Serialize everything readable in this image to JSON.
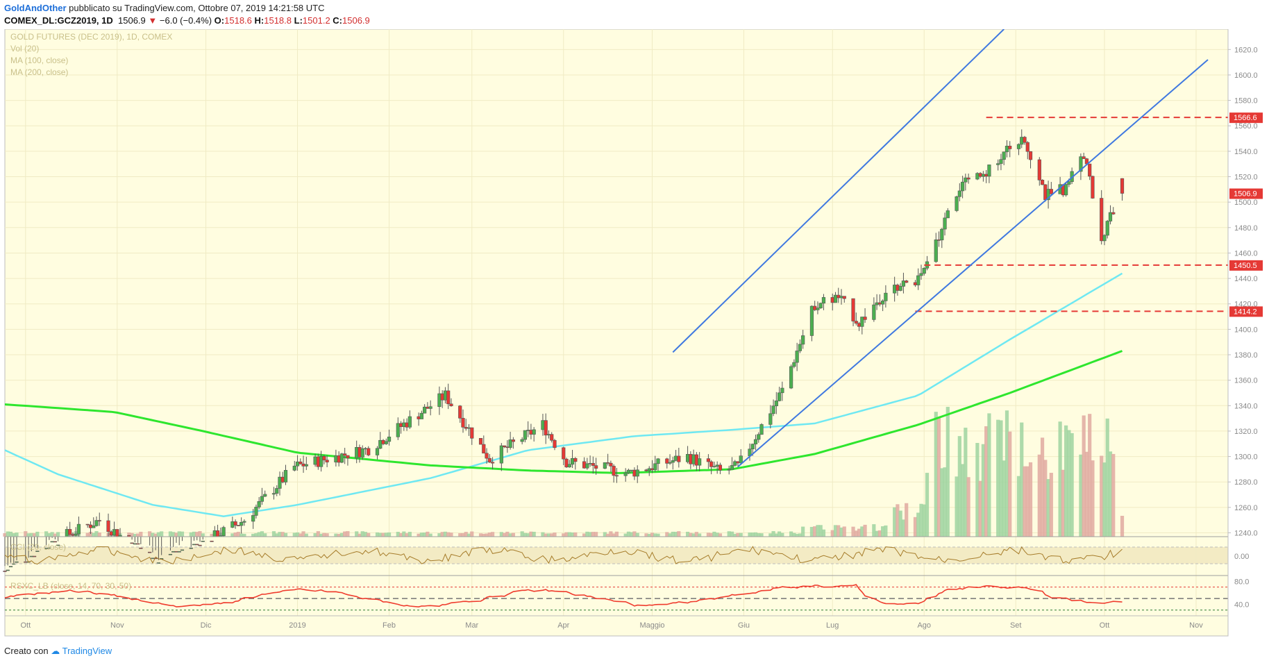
{
  "header": {
    "author": "GoldAndOther",
    "published": "pubblicato su TradingView.com, Ottobre 07, 2019 14:21:58 UTC",
    "symbol": "COMEX_DL:GCZ2019, 1D",
    "last": "1506.9",
    "change": "−6.0 (−0.4%)",
    "o_label": "O:",
    "o_val": "1518.6",
    "h_label": "H:",
    "h_val": "1518.8",
    "l_label": "L:",
    "l_val": "1501.2",
    "c_label": "C:",
    "c_val": "1506.9"
  },
  "legend": {
    "title": "GOLD FUTURES (DEC 2019), 1D, COMEX",
    "vol": "Vol (20)",
    "ma100": "MA (100, close)",
    "ma200": "MA (200, close)",
    "cci": "CCI (20, close)",
    "rsi": "RSXC_LB (close, 14, 70, 30, 50)"
  },
  "footer": {
    "made_with": "Creato con",
    "brand": "TradingView"
  },
  "colors": {
    "background": "#fffde0",
    "up": "#4caf50",
    "down": "#e53935",
    "channel": "#3f78e0",
    "ma100": "#6fe8f2",
    "ma200": "#2ee62e",
    "level": "#e53935",
    "cci": "#a67c2a",
    "rsi": "#ef3b2d"
  },
  "chart_data": {
    "type": "candlestick",
    "title": "GOLD FUTURES (DEC 2019), 1D, COMEX",
    "x_labels": [
      "Ott",
      "Nov",
      "Dic",
      "2019",
      "Feb",
      "Mar",
      "Apr",
      "Maggio",
      "Giu",
      "Lug",
      "Ago",
      "Set",
      "Ott",
      "Nov"
    ],
    "y_ticks": [
      1240,
      1260,
      1280,
      1300,
      1320,
      1340,
      1360,
      1380,
      1400,
      1420,
      1440,
      1460,
      1480,
      1500,
      1520,
      1540,
      1560,
      1580,
      1600,
      1620
    ],
    "ylim": [
      1237,
      1636
    ],
    "price_anchors": [
      [
        "2018-09-24",
        1210
      ],
      [
        "2018-10-12",
        1235
      ],
      [
        "2018-10-26",
        1250
      ],
      [
        "2018-11-13",
        1218
      ],
      [
        "2018-11-30",
        1232
      ],
      [
        "2018-12-14",
        1250
      ],
      [
        "2018-12-31",
        1292
      ],
      [
        "2019-01-25",
        1306
      ],
      [
        "2019-02-20",
        1348
      ],
      [
        "2019-03-07",
        1298
      ],
      [
        "2019-03-25",
        1325
      ],
      [
        "2019-04-02",
        1296
      ],
      [
        "2019-04-23",
        1287
      ],
      [
        "2019-05-13",
        1300
      ],
      [
        "2019-05-24",
        1288
      ],
      [
        "2019-05-30",
        1292
      ],
      [
        "2019-06-14",
        1352
      ],
      [
        "2019-06-25",
        1420
      ],
      [
        "2019-07-03",
        1425
      ],
      [
        "2019-07-10",
        1405
      ],
      [
        "2019-07-19",
        1430
      ],
      [
        "2019-07-31",
        1440
      ],
      [
        "2019-08-13",
        1512
      ],
      [
        "2019-08-20",
        1520
      ],
      [
        "2019-09-03",
        1550
      ],
      [
        "2019-09-06",
        1538
      ],
      [
        "2019-09-11",
        1505
      ],
      [
        "2019-09-17",
        1510
      ],
      [
        "2019-09-24",
        1538
      ],
      [
        "2019-09-30",
        1472
      ],
      [
        "2019-10-07",
        1507
      ]
    ],
    "last_candle": {
      "date": "2019-10-07",
      "open": 1518.6,
      "high": 1518.8,
      "low": 1501.2,
      "close": 1506.9
    },
    "horizontal_levels": [
      1566.6,
      1450.5,
      1414.2
    ],
    "current_price": 1506.9,
    "channel_lines": [
      {
        "from": [
          "2019-05-08",
          1382
        ],
        "to": [
          "2019-08-28",
          1636
        ]
      },
      {
        "from": [
          "2019-05-30",
          1292
        ],
        "to": [
          "2019-11-05",
          1612
        ]
      }
    ],
    "ma100_anchors": [
      [
        "2018-09-24",
        1305
      ],
      [
        "2018-10-12",
        1286
      ],
      [
        "2018-11-13",
        1262
      ],
      [
        "2018-12-07",
        1253
      ],
      [
        "2019-01-01",
        1262
      ],
      [
        "2019-02-15",
        1283
      ],
      [
        "2019-03-20",
        1305
      ],
      [
        "2019-04-25",
        1316
      ],
      [
        "2019-05-28",
        1321
      ],
      [
        "2019-06-25",
        1326
      ],
      [
        "2019-07-30",
        1348
      ],
      [
        "2019-08-30",
        1392
      ],
      [
        "2019-10-07",
        1444
      ]
    ],
    "ma200_anchors": [
      [
        "2018-09-24",
        1341
      ],
      [
        "2018-10-31",
        1335
      ],
      [
        "2018-11-30",
        1320
      ],
      [
        "2019-01-01",
        1303
      ],
      [
        "2019-02-15",
        1293
      ],
      [
        "2019-03-20",
        1289
      ],
      [
        "2019-04-20",
        1287
      ],
      [
        "2019-05-28",
        1290
      ],
      [
        "2019-06-25",
        1302
      ],
      [
        "2019-07-30",
        1325
      ],
      [
        "2019-08-30",
        1350
      ],
      [
        "2019-10-07",
        1383
      ]
    ],
    "cci_ticks": [
      "0.00"
    ],
    "rsi_ticks": [
      "80.0",
      "40.0"
    ],
    "rsi_levels": [
      70,
      50,
      30
    ]
  }
}
